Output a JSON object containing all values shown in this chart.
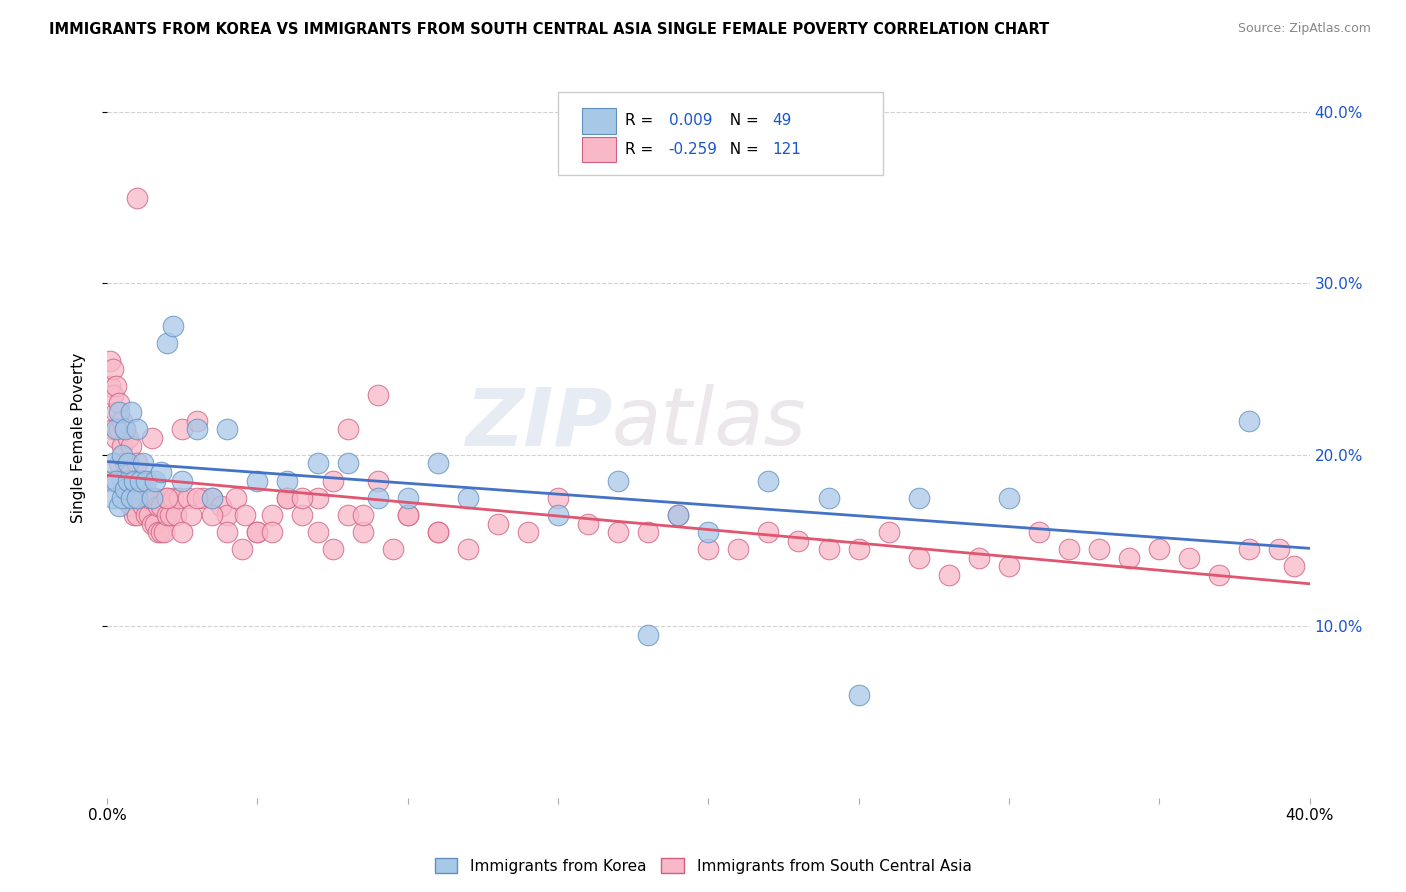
{
  "title": "IMMIGRANTS FROM KOREA VS IMMIGRANTS FROM SOUTH CENTRAL ASIA SINGLE FEMALE POVERTY CORRELATION CHART",
  "source": "Source: ZipAtlas.com",
  "ylabel": "Single Female Poverty",
  "xmin": 0.0,
  "xmax": 0.4,
  "ymin": 0.0,
  "ymax": 0.42,
  "yticks": [
    0.1,
    0.2,
    0.3,
    0.4
  ],
  "ytick_labels": [
    "10.0%",
    "20.0%",
    "30.0%",
    "40.0%"
  ],
  "legend_R_color": "#1a56cc",
  "korea_color": "#a8c8e8",
  "korea_edge": "#6090c0",
  "sca_color": "#f8b8c8",
  "sca_edge": "#d06080",
  "trend_korea_color": "#4472c4",
  "trend_sca_color": "#e05570",
  "watermark_zip": "ZIP",
  "watermark_atlas": "atlas",
  "korea_R": 0.009,
  "korea_N": 49,
  "sca_R": -0.259,
  "sca_N": 121,
  "korea_x": [
    0.001,
    0.002,
    0.002,
    0.003,
    0.003,
    0.004,
    0.004,
    0.005,
    0.005,
    0.006,
    0.006,
    0.007,
    0.007,
    0.008,
    0.008,
    0.009,
    0.01,
    0.01,
    0.011,
    0.012,
    0.013,
    0.015,
    0.016,
    0.018,
    0.02,
    0.022,
    0.025,
    0.03,
    0.035,
    0.04,
    0.05,
    0.06,
    0.07,
    0.08,
    0.09,
    0.1,
    0.11,
    0.12,
    0.15,
    0.17,
    0.18,
    0.19,
    0.2,
    0.22,
    0.24,
    0.25,
    0.27,
    0.3,
    0.38
  ],
  "korea_y": [
    0.185,
    0.175,
    0.195,
    0.185,
    0.215,
    0.17,
    0.225,
    0.175,
    0.2,
    0.18,
    0.215,
    0.185,
    0.195,
    0.175,
    0.225,
    0.185,
    0.175,
    0.215,
    0.185,
    0.195,
    0.185,
    0.175,
    0.185,
    0.19,
    0.265,
    0.275,
    0.185,
    0.215,
    0.175,
    0.215,
    0.185,
    0.185,
    0.195,
    0.195,
    0.175,
    0.175,
    0.195,
    0.175,
    0.165,
    0.185,
    0.095,
    0.165,
    0.155,
    0.185,
    0.175,
    0.06,
    0.175,
    0.175,
    0.22
  ],
  "sca_x": [
    0.001,
    0.001,
    0.002,
    0.002,
    0.002,
    0.003,
    0.003,
    0.003,
    0.004,
    0.004,
    0.004,
    0.005,
    0.005,
    0.005,
    0.006,
    0.006,
    0.006,
    0.007,
    0.007,
    0.007,
    0.008,
    0.008,
    0.008,
    0.009,
    0.009,
    0.01,
    0.01,
    0.01,
    0.011,
    0.011,
    0.012,
    0.012,
    0.013,
    0.013,
    0.014,
    0.014,
    0.015,
    0.015,
    0.016,
    0.016,
    0.017,
    0.017,
    0.018,
    0.018,
    0.019,
    0.02,
    0.02,
    0.021,
    0.022,
    0.023,
    0.024,
    0.025,
    0.027,
    0.028,
    0.03,
    0.032,
    0.035,
    0.038,
    0.04,
    0.043,
    0.046,
    0.05,
    0.055,
    0.06,
    0.065,
    0.07,
    0.075,
    0.08,
    0.085,
    0.09,
    0.095,
    0.1,
    0.11,
    0.12,
    0.13,
    0.14,
    0.15,
    0.16,
    0.17,
    0.18,
    0.19,
    0.2,
    0.21,
    0.22,
    0.23,
    0.24,
    0.25,
    0.26,
    0.27,
    0.28,
    0.29,
    0.3,
    0.31,
    0.32,
    0.33,
    0.34,
    0.35,
    0.36,
    0.37,
    0.38,
    0.39,
    0.395,
    0.01,
    0.015,
    0.02,
    0.025,
    0.03,
    0.035,
    0.04,
    0.045,
    0.05,
    0.055,
    0.06,
    0.065,
    0.07,
    0.075,
    0.08,
    0.085,
    0.09,
    0.1,
    0.11
  ],
  "sca_y": [
    0.24,
    0.255,
    0.215,
    0.235,
    0.25,
    0.21,
    0.225,
    0.24,
    0.195,
    0.215,
    0.23,
    0.185,
    0.205,
    0.22,
    0.18,
    0.195,
    0.215,
    0.175,
    0.19,
    0.21,
    0.17,
    0.185,
    0.205,
    0.165,
    0.185,
    0.165,
    0.175,
    0.195,
    0.175,
    0.185,
    0.17,
    0.185,
    0.165,
    0.175,
    0.165,
    0.175,
    0.16,
    0.175,
    0.16,
    0.175,
    0.155,
    0.17,
    0.155,
    0.17,
    0.155,
    0.165,
    0.175,
    0.165,
    0.175,
    0.165,
    0.175,
    0.215,
    0.175,
    0.165,
    0.22,
    0.175,
    0.175,
    0.17,
    0.165,
    0.175,
    0.165,
    0.155,
    0.165,
    0.175,
    0.165,
    0.175,
    0.185,
    0.165,
    0.155,
    0.235,
    0.145,
    0.165,
    0.155,
    0.145,
    0.16,
    0.155,
    0.175,
    0.16,
    0.155,
    0.155,
    0.165,
    0.145,
    0.145,
    0.155,
    0.15,
    0.145,
    0.145,
    0.155,
    0.14,
    0.13,
    0.14,
    0.135,
    0.155,
    0.145,
    0.145,
    0.14,
    0.145,
    0.14,
    0.13,
    0.145,
    0.145,
    0.135,
    0.35,
    0.21,
    0.175,
    0.155,
    0.175,
    0.165,
    0.155,
    0.145,
    0.155,
    0.155,
    0.175,
    0.175,
    0.155,
    0.145,
    0.215,
    0.165,
    0.185,
    0.165,
    0.155
  ]
}
